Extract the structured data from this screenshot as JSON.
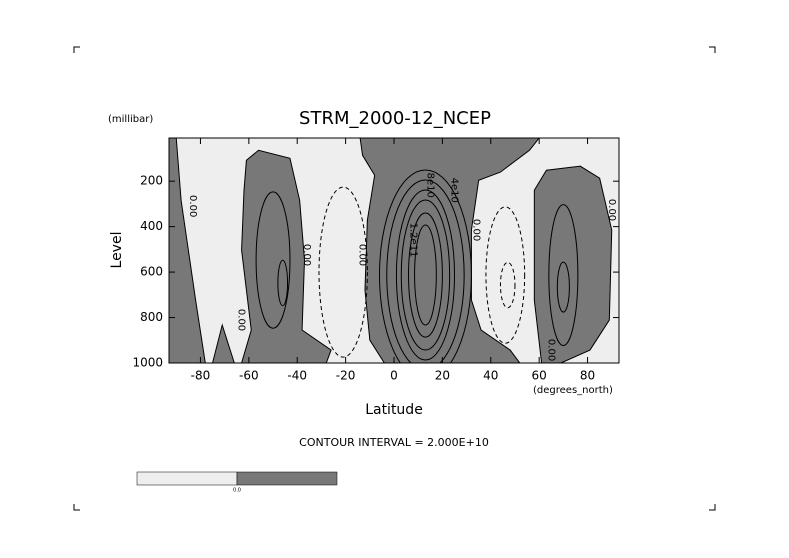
{
  "chart_data": {
    "type": "contour",
    "title": "STRM_2000-12_NCEP",
    "xlabel": "Latitude",
    "ylabel": "Level",
    "xunits": "(degrees_north)",
    "yunits": "(millibar)",
    "note": "CONTOUR INTERVAL = 2.000E+10",
    "xlim": [
      -93,
      93
    ],
    "ylim": [
      1000,
      10
    ],
    "xticks": [
      -80,
      -60,
      -40,
      -20,
      0,
      20,
      40,
      60,
      80
    ],
    "yticks": [
      200,
      400,
      600,
      800,
      1000
    ],
    "colors": {
      "negative": "#eeeeee",
      "positive": "#787878",
      "line": "#000000"
    },
    "regions": [
      {
        "level": 0,
        "points": [
          [
            -93,
            10
          ],
          [
            -90,
            10
          ],
          [
            -88,
            284
          ],
          [
            -82,
            723
          ],
          [
            -78,
            1000
          ],
          [
            -93,
            1000
          ]
        ]
      },
      {
        "level": 0,
        "points": [
          [
            -75,
            1000
          ],
          [
            -71,
            833
          ],
          [
            -66,
            1000
          ]
        ]
      },
      {
        "level": 0,
        "points": [
          [
            -61,
            108
          ],
          [
            -56,
            64
          ],
          [
            -43,
            99
          ],
          [
            -39,
            284
          ],
          [
            -37,
            547
          ],
          [
            -38,
            855
          ],
          [
            -26,
            943
          ],
          [
            -28,
            1000
          ],
          [
            -63,
            1000
          ],
          [
            -59,
            855
          ],
          [
            -63,
            503
          ],
          [
            -62,
            240
          ]
        ]
      },
      {
        "level": 0,
        "points": [
          [
            -14,
            10
          ],
          [
            60,
            10
          ],
          [
            56,
            64
          ],
          [
            44,
            160
          ],
          [
            35,
            196
          ],
          [
            32,
            415
          ],
          [
            32,
            723
          ],
          [
            36,
            855
          ],
          [
            48,
            943
          ],
          [
            52,
            1000
          ],
          [
            -4,
            1000
          ],
          [
            -10,
            899
          ],
          [
            -12,
            679
          ],
          [
            -11,
            371
          ],
          [
            -8,
            174
          ],
          [
            -13,
            86
          ]
        ]
      },
      {
        "level": 0,
        "points": [
          [
            58,
            240
          ],
          [
            63,
            152
          ],
          [
            77,
            134
          ],
          [
            85,
            187
          ],
          [
            90,
            415
          ],
          [
            89,
            811
          ],
          [
            81,
            943
          ],
          [
            69,
            1000
          ],
          [
            61,
            1000
          ],
          [
            58,
            723
          ]
        ]
      }
    ],
    "contours": [
      {
        "level": 20000000000,
        "center": [
          13,
          613
        ],
        "radii": [
          19,
          462
        ]
      },
      {
        "level": 40000000000,
        "center": [
          13,
          613
        ],
        "radii": [
          16,
          418
        ]
      },
      {
        "level": 60000000000,
        "center": [
          13,
          613
        ],
        "radii": [
          12,
          374
        ]
      },
      {
        "level": 80000000000,
        "center": [
          13,
          613
        ],
        "radii": [
          10,
          330
        ]
      },
      {
        "level": 100000000000,
        "center": [
          13,
          613
        ],
        "radii": [
          7,
          273
        ]
      },
      {
        "level": 120000000000,
        "center": [
          13,
          613
        ],
        "radii": [
          4.5,
          220
        ]
      },
      {
        "level": -20000000000,
        "center": [
          -21,
          600
        ],
        "radii": [
          10,
          374
        ]
      },
      {
        "level": -20000000000,
        "center": [
          46,
          613
        ],
        "radii": [
          8,
          300
        ]
      },
      {
        "level": -40000000000,
        "center": [
          47,
          657
        ],
        "radii": [
          3,
          100
        ]
      },
      {
        "level": 20000000000,
        "center": [
          -50,
          547
        ],
        "radii": [
          7,
          300
        ]
      },
      {
        "level": 40000000000,
        "center": [
          -46,
          648
        ],
        "radii": [
          2,
          100
        ]
      },
      {
        "level": 20000000000,
        "center": [
          70,
          613
        ],
        "radii": [
          6,
          310
        ]
      },
      {
        "level": 40000000000,
        "center": [
          70,
          666
        ],
        "radii": [
          2.5,
          110
        ]
      }
    ],
    "contour_labels": [
      {
        "level": 0,
        "label": "0.00",
        "at": [
          -83,
          310
        ]
      },
      {
        "level": 0,
        "label": "0.00",
        "at": [
          -63,
          811
        ]
      },
      {
        "level": 0,
        "label": "0.00",
        "at": [
          -36,
          525
        ]
      },
      {
        "level": 0,
        "label": "0.00",
        "at": [
          -13,
          525
        ]
      },
      {
        "level": 0,
        "label": "0.00",
        "at": [
          34,
          415
        ]
      },
      {
        "level": 0,
        "label": "0.00",
        "at": [
          65,
          943
        ]
      },
      {
        "level": 0,
        "label": "0.00",
        "at": [
          90,
          327
        ]
      },
      {
        "level": 80000000000,
        "label": "8e10",
        "at": [
          15,
          218
        ]
      },
      {
        "level": 40000000000,
        "label": "4e10",
        "at": [
          25,
          240
        ]
      },
      {
        "level": 120000000000,
        "label": "1.2e11",
        "at": [
          8,
          459
        ]
      }
    ],
    "colorbar": {
      "value": 0,
      "label": "0.0"
    }
  }
}
